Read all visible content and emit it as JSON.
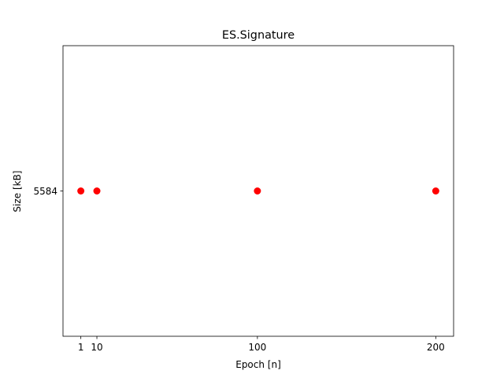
{
  "chart_data": {
    "type": "scatter",
    "title": "ES.Signature",
    "xlabel": "Epoch [n]",
    "ylabel": "Size [kB]",
    "x": [
      1,
      10,
      100,
      200
    ],
    "y": [
      5584,
      5584,
      5584,
      5584
    ],
    "x_ticks": [
      1,
      10,
      100,
      200
    ],
    "y_ticks": [
      5584
    ],
    "xlim": [
      -9,
      210
    ],
    "ylim": [
      5583.9,
      5584.1
    ],
    "marker_color": "#ff0000",
    "grid": false,
    "legend": false
  }
}
